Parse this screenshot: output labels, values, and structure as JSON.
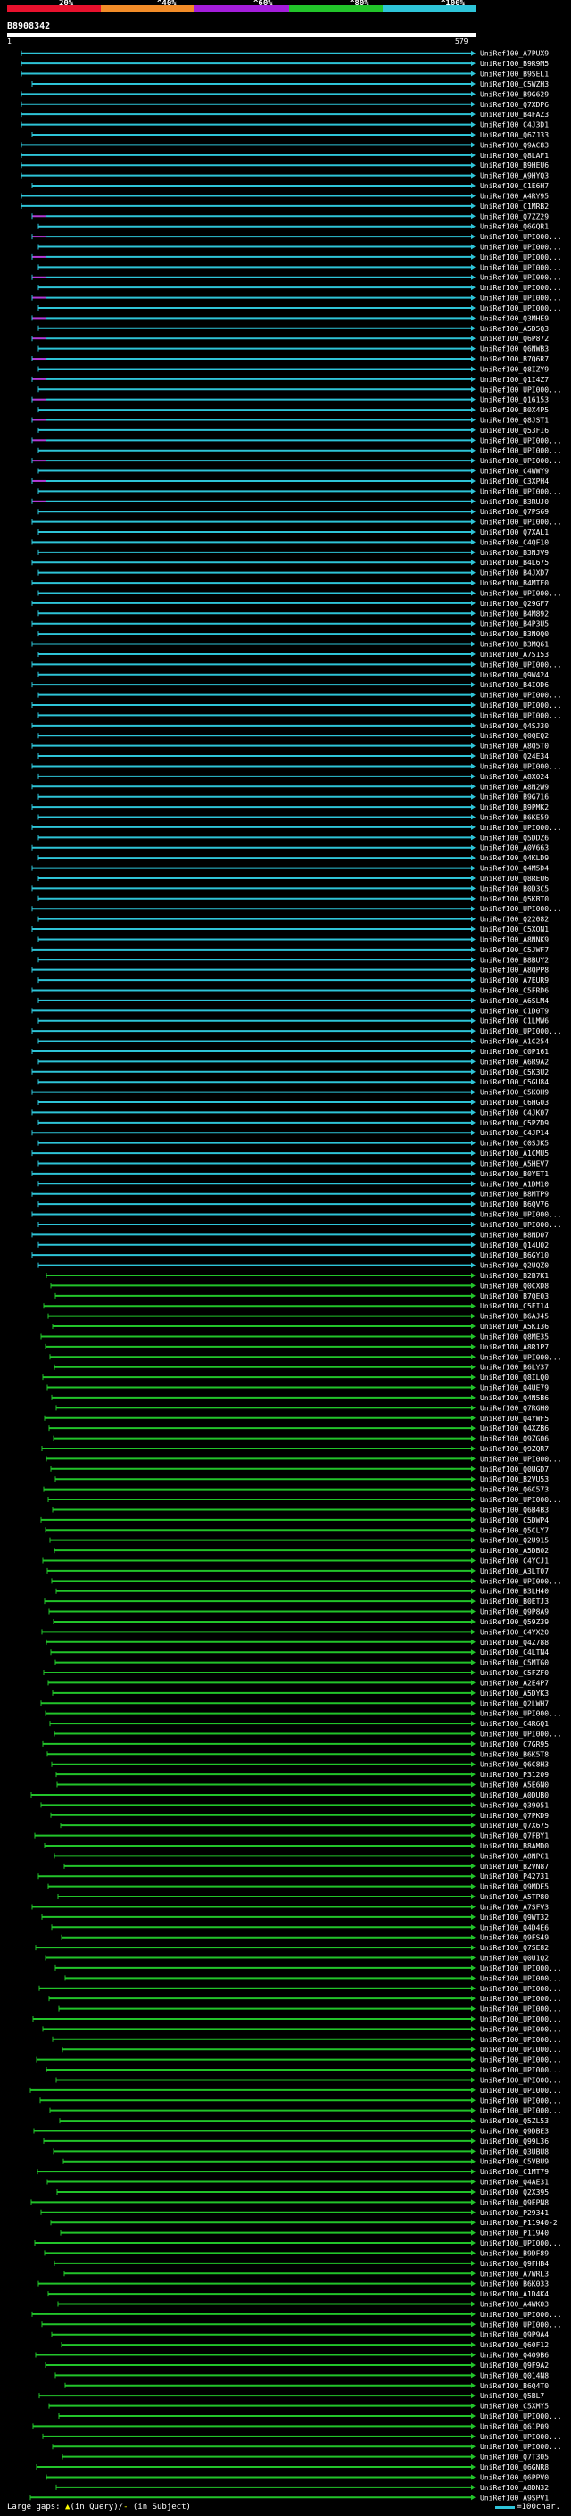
{
  "header": {
    "percent_marks": [
      "20%",
      "^40%",
      "^60%",
      "^80%",
      "^100%"
    ],
    "scale_colors": [
      "#e8112d",
      "#f28c28",
      "#a41ddb",
      "#22c42a",
      "#2ec4d8"
    ],
    "query_id": "B8908342",
    "query_start": "1",
    "query_end": "579"
  },
  "hits": {
    "colors": {
      "high": "#2ec4d8",
      "mid": "#22c42a",
      "low": "#b23bd6",
      "text": "#ffffff"
    },
    "labels": [
      "UniRef100_A7PUX9",
      "UniRef100_B9R9M5",
      "UniRef100_B9SEL1",
      "UniRef100_C5WZH3",
      "UniRef100_B9G629",
      "UniRef100_Q7XDP6",
      "UniRef100_B4FAZ3",
      "UniRef100_C4J3D1",
      "UniRef100_Q6ZJ33",
      "UniRef100_Q9AC83",
      "UniRef100_Q8LAF1",
      "UniRef100_B9HEU6",
      "UniRef100_A9HYQ3",
      "UniRef100_C1E6H7",
      "UniRef100_A4RY95",
      "UniRef100_C1MRB2",
      "UniRef100_Q7ZZ29",
      "UniRef100_Q6GQR1",
      "UniRef100_UPI000...",
      "UniRef100_UPI000...",
      "UniRef100_UPI000...",
      "UniRef100_UPI000...",
      "UniRef100_UPI000...",
      "UniRef100_UPI000...",
      "UniRef100_UPI000...",
      "UniRef100_UPI000...",
      "UniRef100_Q3MHE9",
      "UniRef100_A5D5Q3",
      "UniRef100_Q6P872",
      "UniRef100_Q6NWB3",
      "UniRef100_B7Q6R7",
      "UniRef100_Q8IZY9",
      "UniRef100_Q1I4Z7",
      "UniRef100_UPI000...",
      "UniRef100_Q16153",
      "UniRef100_B0X4P5",
      "UniRef100_Q8JST1",
      "UniRef100_Q53FI6",
      "UniRef100_UPI000...",
      "UniRef100_UPI000...",
      "UniRef100_UPI000...",
      "UniRef100_C4WWY9",
      "UniRef100_C3XPH4",
      "UniRef100_UPI000...",
      "UniRef100_B3RUJ0",
      "UniRef100_Q7PS69",
      "UniRef100_UPI000...",
      "UniRef100_Q7XAL1",
      "UniRef100_C4QF10",
      "UniRef100_B3NJV9",
      "UniRef100_B4L675",
      "UniRef100_B4JXD7",
      "UniRef100_B4MTF0",
      "UniRef100_UPI000...",
      "UniRef100_Q29GF7",
      "UniRef100_B4M892",
      "UniRef100_B4P3U5",
      "UniRef100_B3N0Q0",
      "UniRef100_B3MQ61",
      "UniRef100_A7S153",
      "UniRef100_UPI000...",
      "UniRef100_Q9W424",
      "UniRef100_B4IOD6",
      "UniRef100_UPI000...",
      "UniRef100_UPI000...",
      "UniRef100_UPI000...",
      "UniRef100_Q4SJ30",
      "UniRef100_Q0QEQ2",
      "UniRef100_A8Q5T0",
      "UniRef100_Q24E34",
      "UniRef100_UPI000...",
      "UniRef100_A8X024",
      "UniRef100_A8N2W9",
      "UniRef100_B9G716",
      "UniRef100_B9PMK2",
      "UniRef100_B6KE59",
      "UniRef100_UPI000...",
      "UniRef100_Q5DDZ6",
      "UniRef100_A0V663",
      "UniRef100_Q4KLD9",
      "UniRef100_Q4M5D4",
      "UniRef100_Q8REU6",
      "UniRef100_B0D3C5",
      "UniRef100_Q5KBT0",
      "UniRef100_UPI000...",
      "UniRef100_Q22082",
      "UniRef100_C5XON1",
      "UniRef100_A8NNK9",
      "UniRef100_C5JWF7",
      "UniRef100_B8BUY2",
      "UniRef100_A8QPP8",
      "UniRef100_A7EUR9",
      "UniRef100_C5FRD6",
      "UniRef100_A6SLM4",
      "UniRef100_C1D0T9",
      "UniRef100_C1LMW6",
      "UniRef100_UPI000...",
      "UniRef100_A1C254",
      "UniRef100_C0P161",
      "UniRef100_A6R9A2",
      "UniRef100_C5K3U2",
      "UniRef100_C5GU84",
      "UniRef100_C5K0H9",
      "UniRef100_C6HG03",
      "UniRef100_C4JK07",
      "UniRef100_C5PZD9",
      "UniRef100_C4JP14",
      "UniRef100_C0SJK5",
      "UniRef100_A1CMU5",
      "UniRef100_A5HEV7",
      "UniRef100_B0YET1",
      "UniRef100_A1DM10",
      "UniRef100_B8MTP9",
      "UniRef100_B6QV76",
      "UniRef100_UPI000...",
      "UniRef100_UPI000...",
      "UniRef100_B8ND07",
      "UniRef100_Q14U02",
      "UniRef100_B6GY10",
      "UniRef100_Q2UQZ0",
      "UniRef100_B2B7K1",
      "UniRef100_Q0CXD8",
      "UniRef100_B7QE03",
      "UniRef100_C5FI14",
      "UniRef100_B6AJ45",
      "UniRef100_A5K136",
      "UniRef100_Q8ME35",
      "UniRef100_A8R1P7",
      "UniRef100_UPI000...",
      "UniRef100_B6LY37",
      "UniRef100_Q8ILQ0",
      "UniRef100_Q4UE79",
      "UniRef100_Q4N5B6",
      "UniRef100_Q7RGH0",
      "UniRef100_Q4YWF5",
      "UniRef100_Q4XZB6",
      "UniRef100_Q9ZG06",
      "UniRef100_Q9ZQR7",
      "UniRef100_UPI000...",
      "UniRef100_Q0UGD7",
      "UniRef100_B2VU53",
      "UniRef100_Q6C573",
      "UniRef100_UPI000...",
      "UniRef100_Q6B4B3",
      "UniRef100_C5DWP4",
      "UniRef100_Q5CLY7",
      "UniRef100_Q2U915",
      "UniRef100_A5DB02",
      "UniRef100_C4YCJ1",
      "UniRef100_A3LT07",
      "UniRef100_UPI000...",
      "UniRef100_B3LH40",
      "UniRef100_B0ETJ3",
      "UniRef100_Q9P8A9",
      "UniRef100_Q59Z39",
      "UniRef100_C4YX20",
      "UniRef100_Q4Z788",
      "UniRef100_C4LTN4",
      "UniRef100_C5MTG0",
      "UniRef100_C5FZF0",
      "UniRef100_A2E4P7",
      "UniRef100_A5DYK3",
      "UniRef100_Q2LWH7",
      "UniRef100_UPI000...",
      "UniRef100_C4R6Q1",
      "UniRef100_UPI000...",
      "UniRef100_C7GR95",
      "UniRef100_B6K5T8",
      "UniRef100_Q6C8H3",
      "UniRef100_P31209",
      "UniRef100_A5E6N0",
      "UniRef100_A0DUB0",
      "UniRef100_Q39051",
      "UniRef100_Q7PKD9",
      "UniRef100_Q7X675",
      "UniRef100_Q7FBY1",
      "UniRef100_B8AMD0",
      "UniRef100_A8NPC1",
      "UniRef100_B2VN87",
      "UniRef100_P42731",
      "UniRef100_Q9MDE5",
      "UniRef100_A5TP80",
      "UniRef100_A7SFV3",
      "UniRef100_Q9WT32",
      "UniRef100_Q4D4E6",
      "UniRef100_Q9FS49",
      "UniRef100_Q7SE82",
      "UniRef100_Q0U1Q2",
      "UniRef100_UPI000...",
      "UniRef100_UPI000...",
      "UniRef100_UPI000...",
      "UniRef100_UPI000...",
      "UniRef100_UPI000...",
      "UniRef100_UPI000...",
      "UniRef100_UPI000...",
      "UniRef100_UPI000...",
      "UniRef100_UPI000...",
      "UniRef100_UPI000...",
      "UniRef100_UPI000...",
      "UniRef100_UPI000...",
      "UniRef100_UPI000...",
      "UniRef100_UPI000...",
      "UniRef100_UPI000...",
      "UniRef100_Q5ZL53",
      "UniRef100_Q9DBE3",
      "UniRef100_Q99L36",
      "UniRef100_Q3UBU8",
      "UniRef100_C5VBU9",
      "UniRef100_C1MT79",
      "UniRef100_Q4AE31",
      "UniRef100_Q2X395",
      "UniRef100_Q9EPN8",
      "UniRef100_P29341",
      "UniRef100_P11940-2",
      "UniRef100_P11940",
      "UniRef100_UPI000...",
      "UniRef100_B9DF89",
      "UniRef100_Q9FHB4",
      "UniRef100_A7WRL3",
      "UniRef100_B6K033",
      "UniRef100_A1D4K4",
      "UniRef100_A4WK03",
      "UniRef100_UPI000...",
      "UniRef100_UPI000...",
      "UniRef100_Q9P9A4",
      "UniRef100_Q60F12",
      "UniRef100_Q4O9B6",
      "UniRef100_Q9F9A2",
      "UniRef100_Q014N8",
      "UniRef100_B6Q4T0",
      "UniRef100_Q5BL7",
      "UniRef100_C5XMY5",
      "UniRef100_UPI000...",
      "UniRef100_Q61P09",
      "UniRef100_UPI000...",
      "UniRef100_UPI000...",
      "UniRef100_Q7T305",
      "UniRef100_Q6GNR8",
      "UniRef100_Q6PPV0",
      "UniRef100_A8DN32",
      "UniRef100_A9SPV1"
    ]
  },
  "footer": {
    "large_gaps_label": "Large gaps:",
    "in_query_label": "(in Query)/",
    "in_subject_label": "(in Subject)",
    "scale_label": "=100char."
  }
}
